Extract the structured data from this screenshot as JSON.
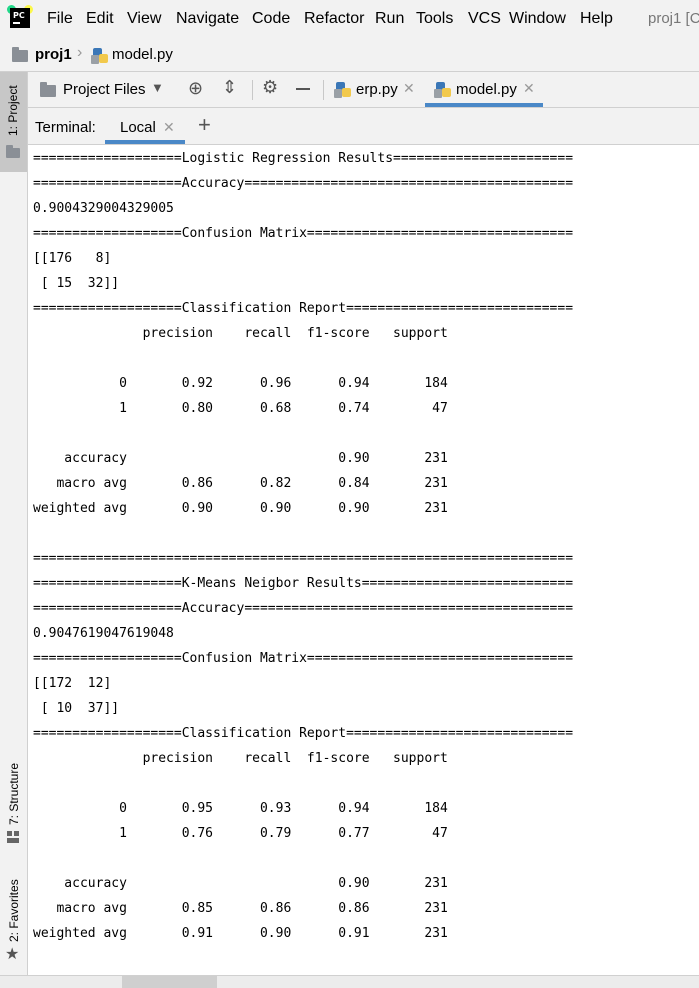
{
  "menubar": {
    "items": [
      "File",
      "Edit",
      "View",
      "Navigate",
      "Code",
      "Refactor",
      "Run",
      "Tools",
      "VCS",
      "Window",
      "Help"
    ],
    "project_title": "proj1 [C"
  },
  "breadcrumb": {
    "project": "proj1",
    "file": "model.py"
  },
  "sidebar": {
    "project_label": "1: Project",
    "structure_label": "7: Structure",
    "favorites_label": "2: Favorites"
  },
  "toolbar": {
    "view_selector": "Project Files",
    "tabs": [
      "erp.py",
      "model.py"
    ]
  },
  "terminal": {
    "label": "Terminal:",
    "tab": "Local",
    "lines": [
      "===================Logistic Regression Results=======================",
      "===================Accuracy==========================================",
      "0.9004329004329005",
      "===================Confusion Matrix==================================",
      "[[176   8]",
      " [ 15  32]]",
      "===================Classification Report=============================",
      "              precision    recall  f1-score   support",
      "",
      "           0       0.92      0.96      0.94       184",
      "           1       0.80      0.68      0.74        47",
      "",
      "    accuracy                           0.90       231",
      "   macro avg       0.86      0.82      0.84       231",
      "weighted avg       0.90      0.90      0.90       231",
      "",
      "=====================================================================",
      "===================K-Means Neigbor Results===========================",
      "===================Accuracy==========================================",
      "0.9047619047619048",
      "===================Confusion Matrix==================================",
      "[[172  12]",
      " [ 10  37]]",
      "===================Classification Report=============================",
      "              precision    recall  f1-score   support",
      "",
      "           0       0.95      0.93      0.94       184",
      "           1       0.76      0.79      0.77        47",
      "",
      "    accuracy                           0.90       231",
      "   macro avg       0.85      0.86      0.86       231",
      "weighted avg       0.91      0.90      0.91       231"
    ]
  },
  "colors": {
    "accent": "#4a88c7",
    "python_blue": "#3b77b7",
    "python_yellow": "#f2c94c"
  }
}
